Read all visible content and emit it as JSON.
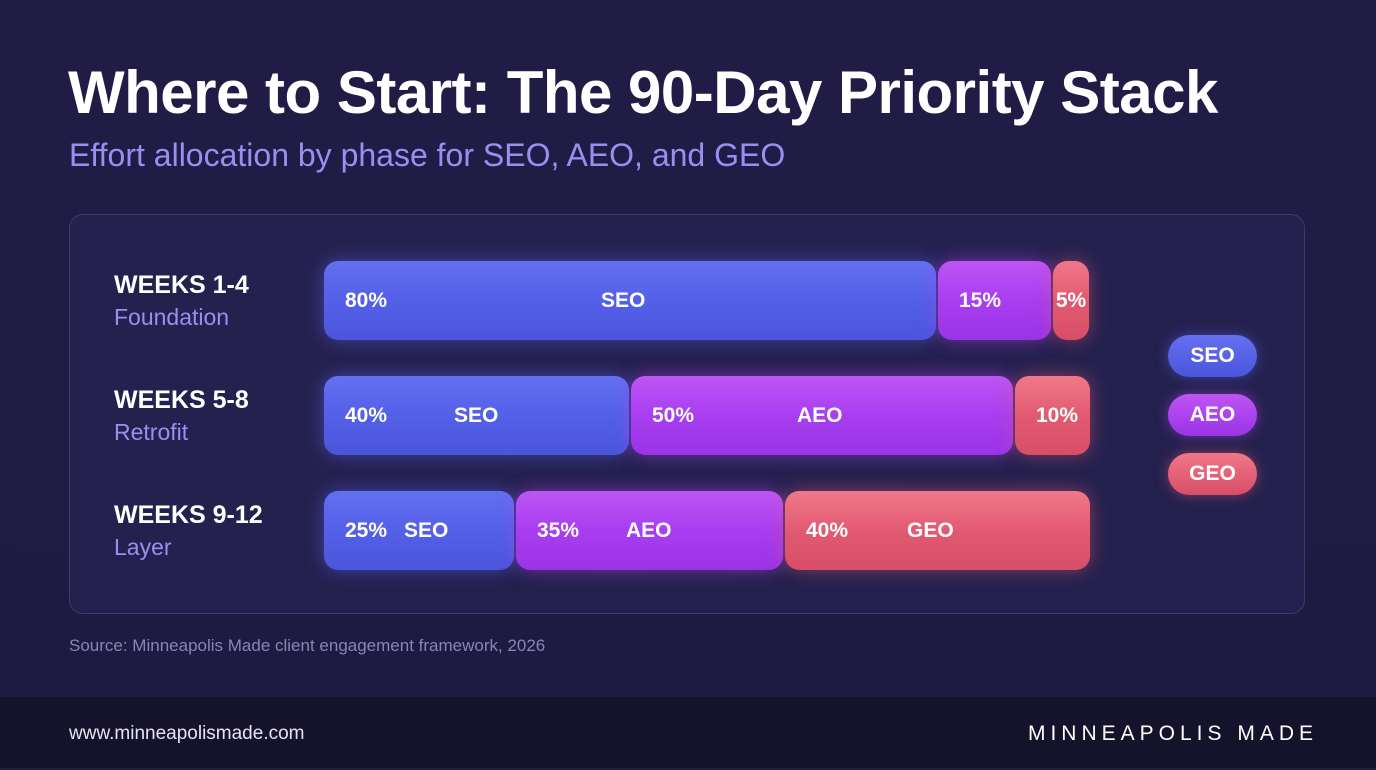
{
  "header": {
    "title": "Where to Start: The 90-Day Priority Stack",
    "subtitle": "Effort allocation by phase for SEO, AEO, and GEO"
  },
  "colors": {
    "seo": "#5562e8",
    "aeo": "#a83ef0",
    "geo": "#e25a72",
    "background": "#1f1b45",
    "subtitle": "#9a8ff0"
  },
  "chart_data": {
    "type": "bar",
    "orientation": "horizontal",
    "stacked": true,
    "categories": [
      {
        "name": "WEEKS 1-4",
        "sublabel": "Foundation"
      },
      {
        "name": "WEEKS 5-8",
        "sublabel": "Retrofit"
      },
      {
        "name": "WEEKS 9-12",
        "sublabel": "Layer"
      }
    ],
    "series": [
      {
        "name": "SEO",
        "values": [
          80,
          40,
          25
        ]
      },
      {
        "name": "AEO",
        "values": [
          15,
          50,
          35
        ]
      },
      {
        "name": "GEO",
        "values": [
          5,
          10,
          40
        ]
      }
    ],
    "segment_labels": [
      [
        {
          "pct": "80%",
          "name": "SEO"
        },
        {
          "pct": "15%",
          "name": ""
        },
        {
          "pct": "5%",
          "name": ""
        }
      ],
      [
        {
          "pct": "40%",
          "name": "SEO"
        },
        {
          "pct": "50%",
          "name": "AEO"
        },
        {
          "pct": "10%",
          "name": ""
        }
      ],
      [
        {
          "pct": "25%",
          "name": "SEO"
        },
        {
          "pct": "35%",
          "name": "AEO"
        },
        {
          "pct": "40%",
          "name": "GEO"
        }
      ]
    ],
    "xlim": [
      0,
      100
    ],
    "legend": [
      "SEO",
      "AEO",
      "GEO"
    ],
    "legend_position": "right",
    "grid": false
  },
  "source": "Source: Minneapolis Made client engagement framework, 2026",
  "footer": {
    "url": "www.minneapolismade.com",
    "brand": "MINNEAPOLIS MADE"
  }
}
